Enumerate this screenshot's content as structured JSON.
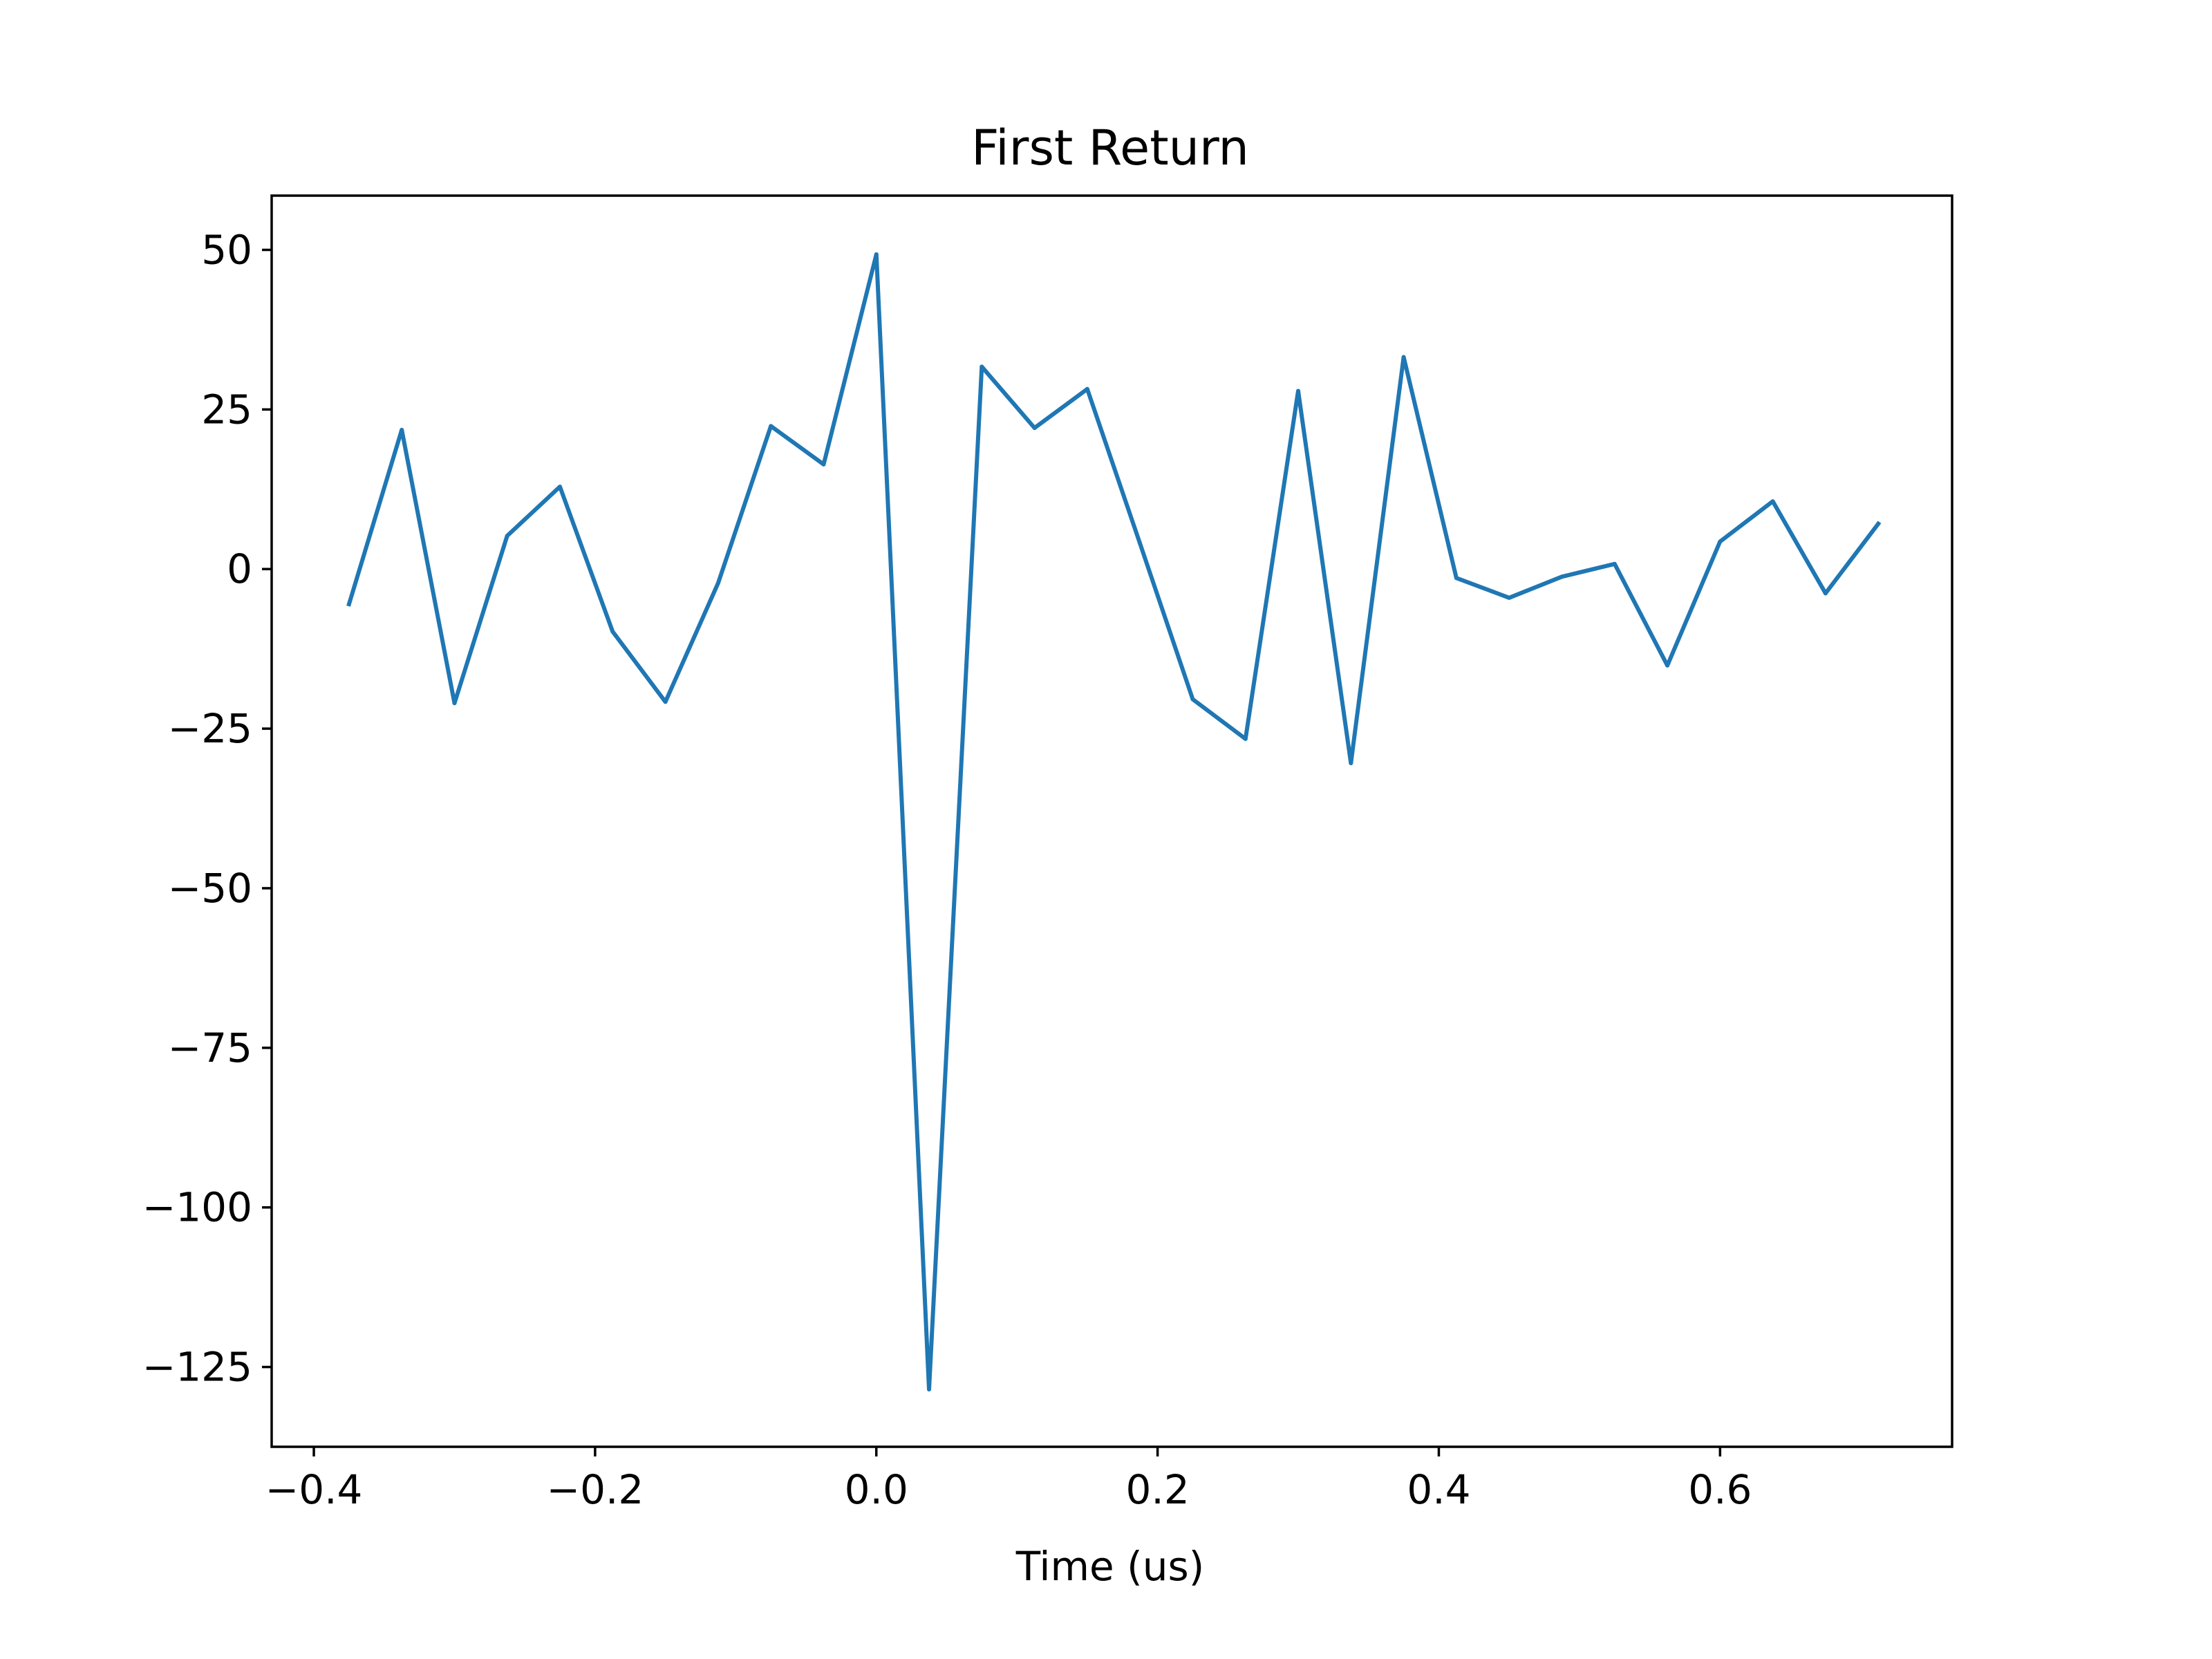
{
  "chart_data": {
    "type": "line",
    "title": "First Return",
    "xlabel": "Time (us)",
    "ylabel": "",
    "xlim": [
      -0.43,
      0.765
    ],
    "ylim": [
      -137.5,
      58.5
    ],
    "xticks": [
      -0.4,
      -0.2,
      0.0,
      0.2,
      0.4,
      0.6
    ],
    "xtick_labels": [
      "−0.4",
      "−0.2",
      "0.0",
      "0.2",
      "0.4",
      "0.6"
    ],
    "yticks": [
      50,
      25,
      0,
      -25,
      -50,
      -75,
      -100,
      -125
    ],
    "ytick_labels": [
      "50",
      "25",
      "0",
      "−25",
      "−50",
      "−75",
      "−100",
      "−125"
    ],
    "grid": false,
    "legend": "none",
    "series": [
      {
        "color": "#1f77b4",
        "x": [
          -0.375,
          -0.3375,
          -0.3,
          -0.2625,
          -0.225,
          -0.1875,
          -0.15,
          -0.1125,
          -0.075,
          -0.0375,
          0.0,
          0.0375,
          0.075,
          0.1125,
          0.15,
          0.1875,
          0.225,
          0.2625,
          0.3,
          0.3375,
          0.375,
          0.4125,
          0.45,
          0.4875,
          0.525,
          0.5625,
          0.6,
          0.6375,
          0.675,
          0.7125
        ],
        "y": [
          -5.5,
          21.8,
          -21.0,
          5.2,
          12.9,
          -9.8,
          -20.8,
          -2.2,
          22.4,
          16.4,
          49.3,
          -128.5,
          31.7,
          22.1,
          28.2,
          4.0,
          -20.4,
          -26.6,
          27.9,
          -30.4,
          33.2,
          -1.4,
          -4.5,
          -1.2,
          0.8,
          -15.1,
          4.3,
          10.6,
          -3.8,
          7.1
        ]
      }
    ]
  }
}
